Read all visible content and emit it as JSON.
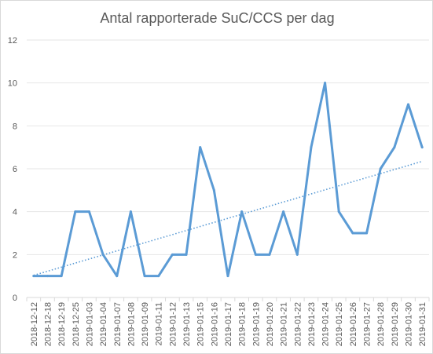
{
  "chart_data": {
    "type": "line",
    "title": "Antal rapporterade SuC/CCS per dag",
    "xlabel": "",
    "ylabel": "",
    "ylim": [
      0,
      12
    ],
    "yticks": [
      "0",
      "2",
      "4",
      "6",
      "8",
      "10",
      "12"
    ],
    "grid": true,
    "legend": "none",
    "categories": [
      "2018-12-12",
      "2018-12-18",
      "2018-12-19",
      "2018-12-25",
      "2019-01-03",
      "2019-01-04",
      "2019-01-07",
      "2019-01-08",
      "2019-01-09",
      "2019-01-11",
      "2019-01-12",
      "2019-01-13",
      "2019-01-15",
      "2019-01-16",
      "2019-01-17",
      "2019-01-18",
      "2019-01-19",
      "2019-01-20",
      "2019-01-21",
      "2019-01-22",
      "2019-01-23",
      "2019-01-24",
      "2019-01-25",
      "2019-01-26",
      "2019-01-27",
      "2019-01-28",
      "2019-01-29",
      "2019-01-30",
      "2019-01-31"
    ],
    "series": [
      {
        "values": [
          1,
          1,
          1,
          4,
          4,
          2,
          1,
          4,
          1,
          1,
          2,
          2,
          7,
          5,
          1,
          4,
          2,
          2,
          4,
          2,
          7,
          10,
          4,
          3,
          3,
          6,
          7,
          9,
          7
        ],
        "color": "#5b9bd5"
      }
    ],
    "trendline": {
      "type": "linear",
      "style": "dotted",
      "color": "#5b9bd5"
    }
  }
}
